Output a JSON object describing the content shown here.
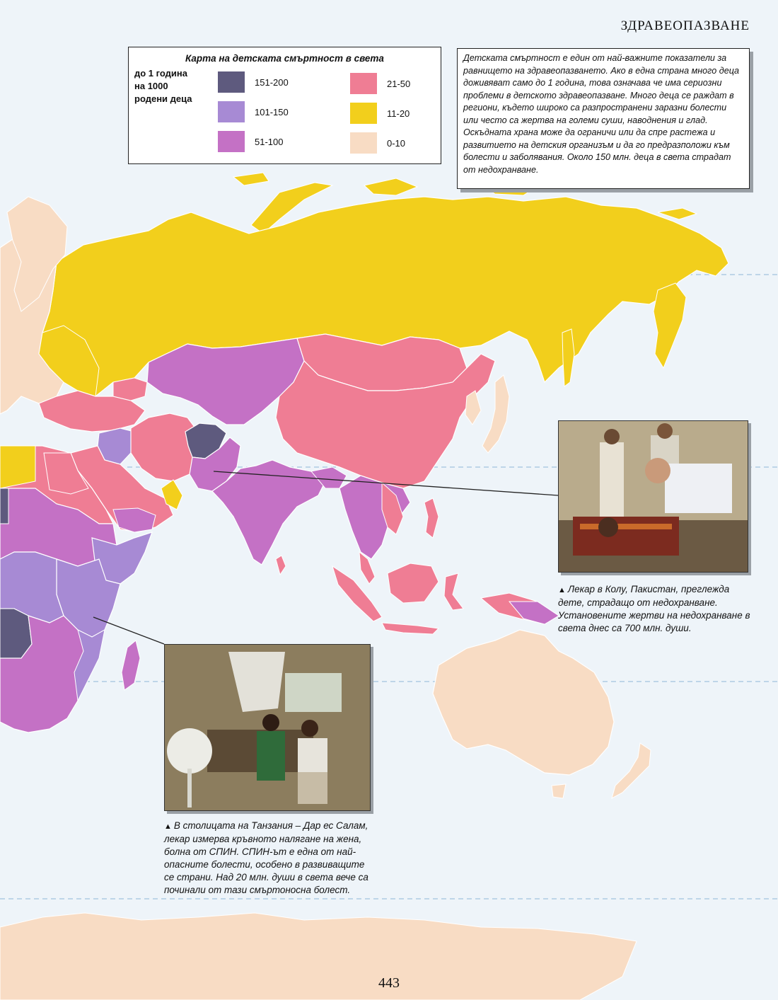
{
  "running_head": "ЗДРАВЕОПАЗВАНЕ",
  "legend": {
    "title": "Карта на детската смъртност в света",
    "units": "до 1 година\nна 1000\nродени деца",
    "classes": [
      {
        "label": "151-200",
        "color": "#5e5a7e"
      },
      {
        "label": "101-150",
        "color": "#a78ad4"
      },
      {
        "label": "51-100",
        "color": "#c471c5"
      },
      {
        "label": "21-50",
        "color": "#ef7d94"
      },
      {
        "label": "11-20",
        "color": "#f2cf1c"
      },
      {
        "label": "0-10",
        "color": "#f8dcc4"
      }
    ]
  },
  "info_text": "Детската смъртност е един от най-важните показатели за равнището на здравеопазването. Ако в една страна много деца доживяват само до 1 година, това означава че има сериозни проблеми в детското здравеопазване. Много деца се раждат в региони, където широко са разпространени заразни болести или често са жертва на големи суши, наводнения и глад. Оскъдната храна може да ограничи или да спре растежа и развитието на детския организъм и да го предразположи към болести и заболявания. Около 150 млн. деца в света страдат от недохранване.",
  "photo_pakistan": {
    "caption": "Лекар в Колу, Пакистан, преглежда дете, страдащо от недохранване. Установените жертви на недохранване в света днес са 700 млн. души."
  },
  "photo_tanzania": {
    "caption": "В столицата на Танзания – Дар ес Салам, лекар измерва кръвното налягане на жена, болна от СПИН. СПИН-ът е една от най-опасните болести, особено в развиващите се страни. Над 20 млн. души в света вече са починали от тази смъртоносна болест."
  },
  "caption_marker": "▲",
  "page_number": "443",
  "colors": {
    "ocean": "#eef4f9",
    "border": "#ffffff",
    "grid": "#8fb6d6"
  }
}
